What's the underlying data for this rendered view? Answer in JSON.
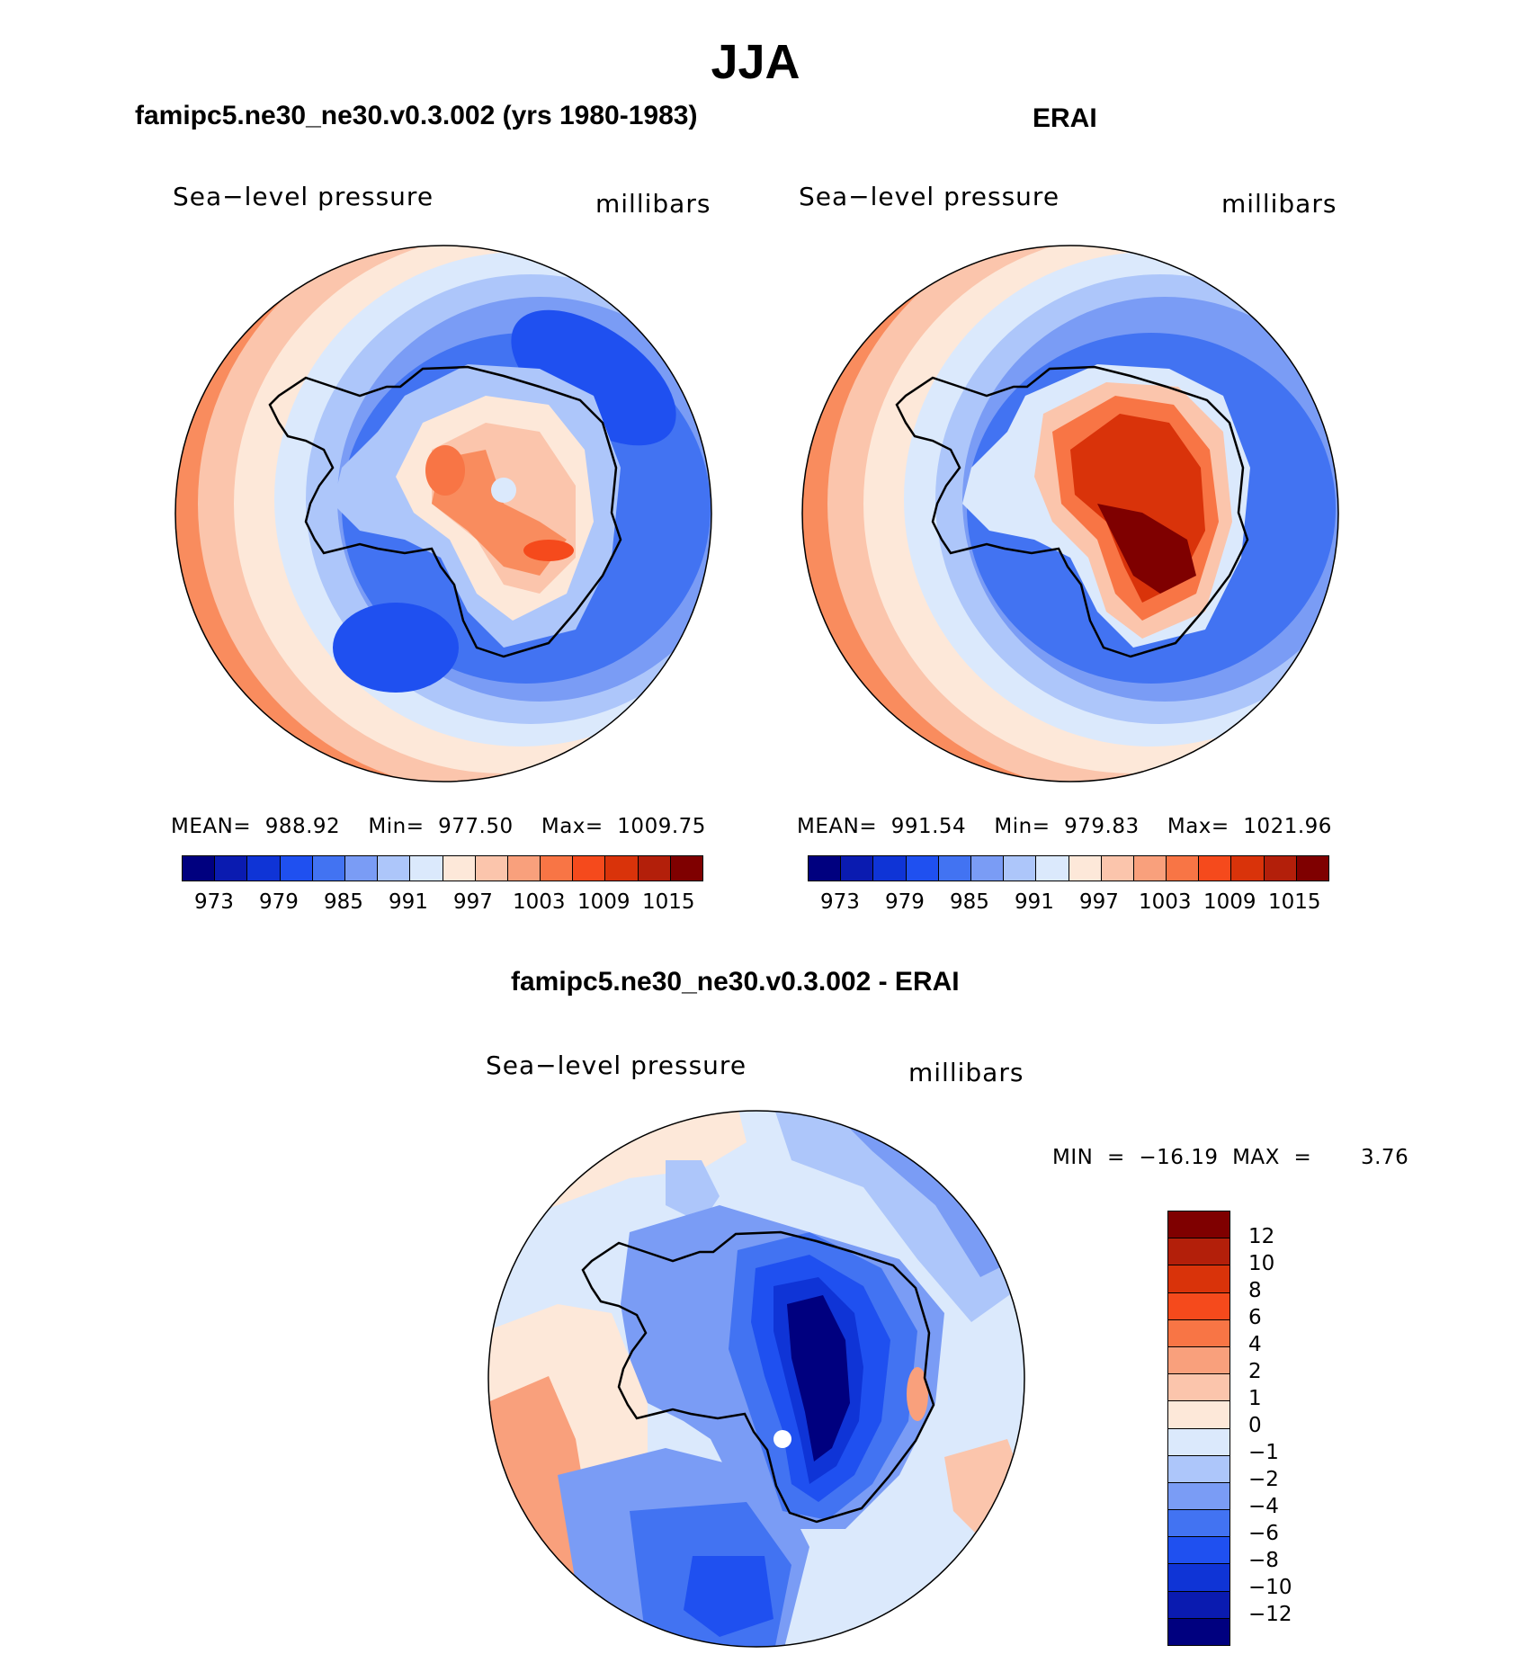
{
  "page_title": "JJA",
  "panels": [
    {
      "title": "famipc5.ne30_ne30.v0.3.002 (yrs 1980-1983)",
      "variable": "Sea−level pressure",
      "units": "millibars",
      "stats": "MEAN=  988.92    Min=  977.50    Max=  1009.75"
    },
    {
      "title": "ERAI",
      "variable": "Sea−level pressure",
      "units": "millibars",
      "stats": "MEAN=  991.54    Min=  979.83    Max=  1021.96"
    }
  ],
  "diff_panel": {
    "title": "famipc5.ne30_ne30.v0.3.002 - ERAI",
    "variable": "Sea−level pressure",
    "units": "millibars",
    "stats": "MIN  =  −16.19  MAX  =       3.76"
  },
  "colorbar_main": {
    "colors": [
      "#00007f",
      "#0a1bb0",
      "#0f34d6",
      "#1f50f0",
      "#4273f2",
      "#7a9cf5",
      "#adc6fa",
      "#dbe9fc",
      "#fde8d9",
      "#fbc5ac",
      "#f9a07c",
      "#f87545",
      "#f54a1c",
      "#d9330a",
      "#b31f0a",
      "#7f0000"
    ],
    "labels": [
      "973",
      "979",
      "985",
      "991",
      "997",
      "1003",
      "1009",
      "1015"
    ]
  },
  "colorbar_diff": {
    "colors": [
      "#7f0000",
      "#b31f0a",
      "#d9330a",
      "#f54a1c",
      "#f87545",
      "#f9a07c",
      "#fbc5ac",
      "#fde8d9",
      "#dbe9fc",
      "#adc6fa",
      "#7a9cf5",
      "#4273f2",
      "#1f50f0",
      "#0f34d6",
      "#0a1bb0",
      "#00007f"
    ],
    "labels": [
      "12",
      "10",
      "8",
      "6",
      "4",
      "2",
      "1",
      "0",
      "−1",
      "−2",
      "−4",
      "−6",
      "−8",
      "−10",
      "−12"
    ]
  },
  "map_colors": {
    "red_mid": "#f98c5e",
    "red_light": "#fbc5ac",
    "cream": "#fde8d9",
    "blue_pale": "#dbe9fc",
    "blue_light": "#adc6fa",
    "blue_mid": "#7a9cf5",
    "blue_main": "#4273f2",
    "blue_strong": "#1f50f0",
    "blue_deep": "#0f34d6",
    "navy": "#00007f",
    "red_strong": "#f54a1c",
    "red_dark": "#b31f0a",
    "coast": "#000000"
  }
}
